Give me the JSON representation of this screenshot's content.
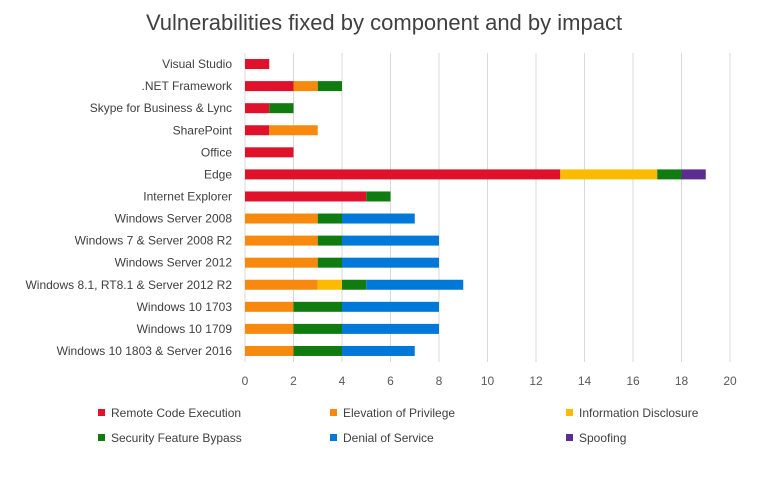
{
  "chart_data": {
    "type": "bar",
    "orientation": "horizontal",
    "stacked": true,
    "title": "Vulnerabilities fixed by component and by impact",
    "xlabel": "",
    "ylabel": "",
    "xlim": [
      0,
      20
    ],
    "x_ticks": [
      "0",
      "2",
      "4",
      "6",
      "8",
      "10",
      "12",
      "14",
      "16",
      "18",
      "20"
    ],
    "grid": "vertical",
    "legend_position": "bottom",
    "categories": [
      "Visual Studio",
      ".NET Framework",
      "Skype for Business & Lync",
      "SharePoint",
      "Office",
      "Edge",
      "Internet Explorer",
      "Windows Server 2008",
      "Windows 7 & Server 2008 R2",
      "Windows Server 2012",
      "Windows 8.1, RT8.1 & Server 2012 R2",
      "Windows 10 1703",
      "Windows 10 1709",
      "Windows 10 1803 & Server 2016"
    ],
    "series": [
      {
        "name": "Remote Code Execution",
        "color": "#e0112b",
        "values": [
          1,
          2,
          1,
          1,
          2,
          13,
          5,
          0,
          0,
          0,
          0,
          0,
          0,
          0
        ]
      },
      {
        "name": "Elevation of Privilege",
        "color": "#f7890f",
        "values": [
          0,
          1,
          0,
          2,
          0,
          0,
          0,
          3,
          3,
          3,
          3,
          2,
          2,
          2
        ]
      },
      {
        "name": "Information Disclosure",
        "color": "#fcba00",
        "values": [
          0,
          0,
          0,
          0,
          0,
          4,
          0,
          0,
          0,
          0,
          1,
          0,
          0,
          0
        ]
      },
      {
        "name": "Security Feature Bypass",
        "color": "#107c10",
        "values": [
          0,
          1,
          1,
          0,
          0,
          1,
          1,
          1,
          1,
          1,
          1,
          2,
          2,
          2
        ]
      },
      {
        "name": "Denial of Service",
        "color": "#0078d7",
        "values": [
          0,
          0,
          0,
          0,
          0,
          0,
          0,
          3,
          4,
          4,
          4,
          4,
          4,
          3
        ]
      },
      {
        "name": "Spoofing",
        "color": "#5c2d91",
        "values": [
          0,
          0,
          0,
          0,
          0,
          1,
          0,
          0,
          0,
          0,
          0,
          0,
          0,
          0
        ]
      }
    ]
  }
}
